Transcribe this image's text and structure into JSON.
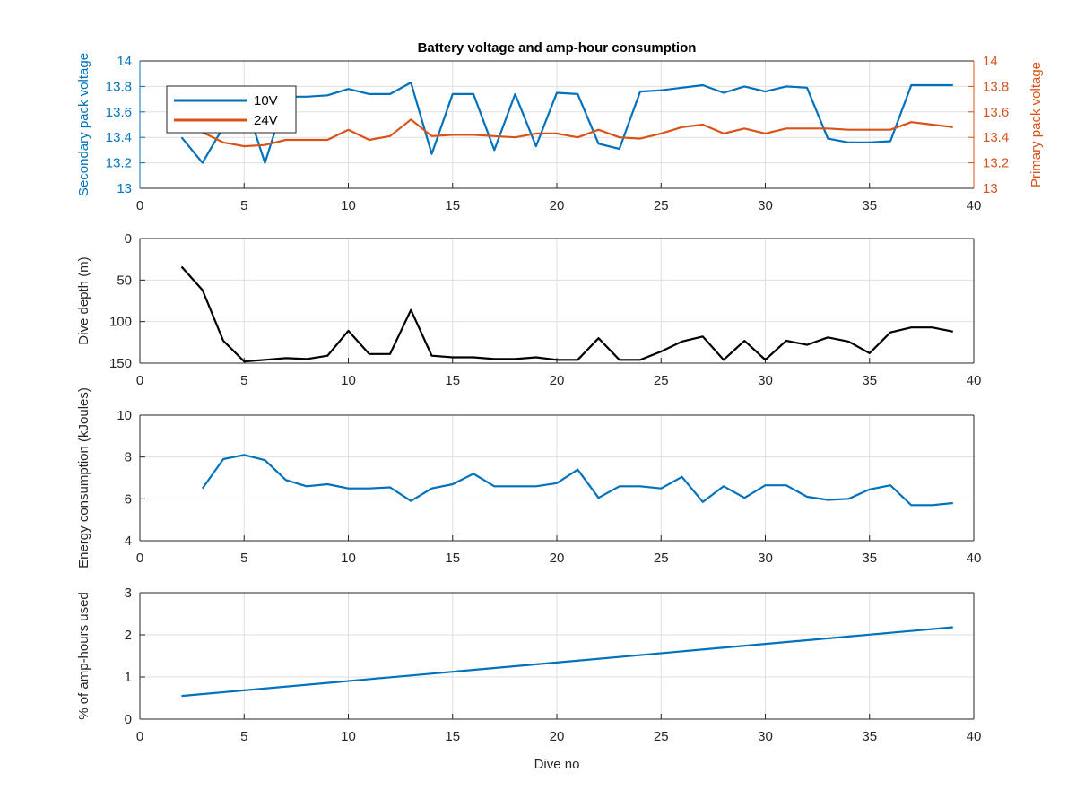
{
  "chart_data": [
    {
      "type": "line",
      "title": "Battery voltage and amp-hour consumption",
      "xlabel": "",
      "ylabel": "Secondary pack voltage",
      "ylabel_right": "Primary pack voltage",
      "xlim": [
        0,
        40
      ],
      "ylim": [
        13,
        14
      ],
      "ylim_right": [
        13,
        14
      ],
      "x_ticks": [
        "0",
        "5",
        "10",
        "15",
        "20",
        "25",
        "30",
        "35",
        "40"
      ],
      "y_ticks": [
        "13",
        "13.2",
        "13.4",
        "13.6",
        "13.8",
        "14"
      ],
      "y_ticks_right": [
        "13",
        "13.2",
        "13.4",
        "13.6",
        "13.8",
        "14"
      ],
      "grid": true,
      "legend_position": "top-left",
      "series": [
        {
          "name": "10V",
          "axis": "left",
          "color": "#0072BD",
          "x": [
            2,
            3,
            4,
            5,
            6,
            7,
            8,
            9,
            10,
            11,
            12,
            13,
            14,
            15,
            16,
            17,
            18,
            19,
            20,
            21,
            22,
            23,
            24,
            25,
            26,
            27,
            28,
            29,
            30,
            31,
            32,
            33,
            34,
            35,
            36,
            37,
            38,
            39
          ],
          "values": [
            13.4,
            13.2,
            13.48,
            13.7,
            13.2,
            13.72,
            13.72,
            13.73,
            13.78,
            13.74,
            13.74,
            13.83,
            13.27,
            13.74,
            13.74,
            13.3,
            13.74,
            13.33,
            13.75,
            13.74,
            13.35,
            13.31,
            13.76,
            13.77,
            13.79,
            13.81,
            13.75,
            13.8,
            13.76,
            13.8,
            13.79,
            13.39,
            13.36,
            13.36,
            13.37,
            13.81,
            13.81,
            13.81
          ]
        },
        {
          "name": "24V",
          "axis": "right",
          "color": "#D95319",
          "x": [
            2,
            3,
            4,
            5,
            6,
            7,
            8,
            9,
            10,
            11,
            12,
            13,
            14,
            15,
            16,
            17,
            18,
            19,
            20,
            21,
            22,
            23,
            24,
            25,
            26,
            27,
            28,
            29,
            30,
            31,
            32,
            33,
            34,
            35,
            36,
            37,
            38,
            39
          ],
          "values": [
            13.46,
            13.44,
            13.36,
            13.33,
            13.34,
            13.38,
            13.38,
            13.38,
            13.46,
            13.38,
            13.41,
            13.54,
            13.41,
            13.42,
            13.42,
            13.41,
            13.4,
            13.43,
            13.43,
            13.4,
            13.46,
            13.4,
            13.39,
            13.43,
            13.48,
            13.5,
            13.43,
            13.47,
            13.43,
            13.47,
            13.47,
            13.47,
            13.46,
            13.46,
            13.46,
            13.52,
            13.5,
            13.48
          ]
        }
      ]
    },
    {
      "type": "line",
      "title": "",
      "xlabel": "",
      "ylabel": "Dive depth (m)",
      "xlim": [
        0,
        40
      ],
      "ylim": [
        0,
        150
      ],
      "y_reversed": true,
      "x_ticks": [
        "0",
        "5",
        "10",
        "15",
        "20",
        "25",
        "30",
        "35",
        "40"
      ],
      "y_ticks": [
        "0",
        "50",
        "100",
        "150"
      ],
      "grid": true,
      "series": [
        {
          "color": "#000000",
          "x": [
            2,
            3,
            4,
            5,
            6,
            7,
            8,
            9,
            10,
            11,
            12,
            13,
            14,
            15,
            16,
            17,
            18,
            19,
            20,
            21,
            22,
            23,
            24,
            25,
            26,
            27,
            28,
            29,
            30,
            31,
            32,
            33,
            34,
            35,
            36,
            37,
            38,
            39
          ],
          "values": [
            34,
            62,
            123,
            148,
            146,
            144,
            145,
            141,
            111,
            139,
            139,
            86,
            141,
            143,
            143,
            145,
            145,
            143,
            146,
            146,
            120,
            146,
            146,
            136,
            124,
            118,
            146,
            123,
            146,
            123,
            128,
            119,
            124,
            138,
            113,
            107,
            107,
            112
          ]
        }
      ]
    },
    {
      "type": "line",
      "title": "",
      "xlabel": "",
      "ylabel": "Energy consumption (kJoules)",
      "xlim": [
        0,
        40
      ],
      "ylim": [
        4,
        10
      ],
      "x_ticks": [
        "0",
        "5",
        "10",
        "15",
        "20",
        "25",
        "30",
        "35",
        "40"
      ],
      "y_ticks": [
        "4",
        "6",
        "8",
        "10"
      ],
      "grid": true,
      "series": [
        {
          "color": "#0072BD",
          "x": [
            3,
            4,
            5,
            6,
            7,
            8,
            9,
            10,
            11,
            12,
            13,
            14,
            15,
            16,
            17,
            18,
            19,
            20,
            21,
            22,
            23,
            24,
            25,
            26,
            27,
            28,
            29,
            30,
            31,
            32,
            33,
            34,
            35,
            36,
            37,
            38,
            39
          ],
          "values": [
            6.5,
            7.9,
            8.1,
            7.85,
            6.9,
            6.6,
            6.7,
            6.5,
            6.5,
            6.55,
            5.9,
            6.5,
            6.7,
            7.2,
            6.6,
            6.6,
            6.6,
            6.75,
            7.4,
            6.05,
            6.6,
            6.6,
            6.5,
            7.05,
            5.85,
            6.6,
            6.05,
            6.65,
            6.65,
            6.1,
            5.95,
            6.0,
            6.45,
            6.65,
            5.7,
            5.7,
            5.8
          ]
        }
      ]
    },
    {
      "type": "line",
      "title": "",
      "xlabel": "Dive no",
      "ylabel": "% of amp-hours used",
      "xlim": [
        0,
        40
      ],
      "ylim": [
        0,
        3
      ],
      "x_ticks": [
        "0",
        "5",
        "10",
        "15",
        "20",
        "25",
        "30",
        "35",
        "40"
      ],
      "y_ticks": [
        "0",
        "1",
        "2",
        "3"
      ],
      "grid": true,
      "series": [
        {
          "color": "#0072BD",
          "x": [
            2,
            39
          ],
          "values": [
            0.55,
            2.18
          ]
        }
      ]
    }
  ]
}
